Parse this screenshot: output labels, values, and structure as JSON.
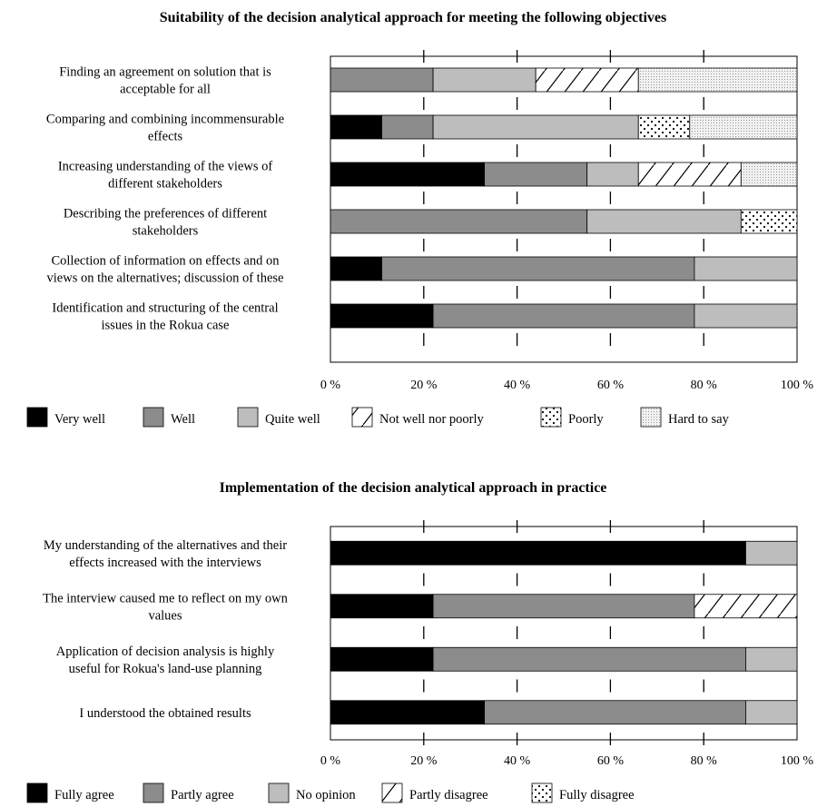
{
  "chart_data": [
    {
      "type": "bar",
      "orientation": "horizontal",
      "stacked": true,
      "title": "Suitability of the decision analytical approach for meeting the following objectives",
      "categories": [
        [
          "Finding an agreement on solution that is",
          "acceptable for all"
        ],
        [
          "Comparing and combining incommensurable",
          "effects"
        ],
        [
          "Increasing understanding of the views of",
          "different stakeholders"
        ],
        [
          "Describing the preferences of different",
          "stakeholders"
        ],
        [
          "Collection of information on effects and on",
          "views on the alternatives; discussion of these"
        ],
        [
          "Identification and structuring of the central",
          "issues in the Rokua case"
        ]
      ],
      "x_ticks": [
        "0 %",
        "20 %",
        "40 %",
        "60 %",
        "80 %",
        "100 %"
      ],
      "xlim": [
        0,
        100
      ],
      "legend_position": "bottom",
      "series": [
        {
          "name": "Very well",
          "pattern": "black",
          "values": [
            0,
            11,
            33,
            0,
            11,
            22
          ]
        },
        {
          "name": "Well",
          "pattern": "darkgray",
          "values": [
            22,
            11,
            22,
            55,
            67,
            56
          ]
        },
        {
          "name": "Quite well",
          "pattern": "lightgray",
          "values": [
            22,
            44,
            11,
            33,
            22,
            22
          ]
        },
        {
          "name": "Not well nor poorly",
          "pattern": "hatch",
          "values": [
            22,
            0,
            22,
            0,
            0,
            0
          ]
        },
        {
          "name": "Poorly",
          "pattern": "dots",
          "values": [
            0,
            11,
            0,
            12,
            0,
            0
          ]
        },
        {
          "name": "Hard to say",
          "pattern": "fine",
          "values": [
            34,
            23,
            12,
            0,
            0,
            0
          ]
        }
      ]
    },
    {
      "type": "bar",
      "orientation": "horizontal",
      "stacked": true,
      "title": "Implementation of the decision analytical approach in practice",
      "categories": [
        [
          "My understanding of the alternatives and their",
          "effects increased with the interviews"
        ],
        [
          "The interview caused me to reflect on my own",
          "values"
        ],
        [
          "Application of decision analysis is highly",
          "useful for Rokua's land-use planning"
        ],
        [
          "I understood the obtained results"
        ]
      ],
      "x_ticks": [
        "0 %",
        "20 %",
        "40 %",
        "60 %",
        "80 %",
        "100 %"
      ],
      "xlim": [
        0,
        100
      ],
      "legend_position": "bottom",
      "series": [
        {
          "name": "Fully agree",
          "pattern": "black",
          "values": [
            89,
            22,
            22,
            33
          ]
        },
        {
          "name": "Partly agree",
          "pattern": "darkgray",
          "values": [
            0,
            56,
            67,
            56
          ]
        },
        {
          "name": "No opinion",
          "pattern": "lightgray",
          "values": [
            11,
            0,
            11,
            11
          ]
        },
        {
          "name": "Partly disagree",
          "pattern": "hatch",
          "values": [
            0,
            22,
            0,
            0
          ]
        },
        {
          "name": "Fully disagree",
          "pattern": "dots",
          "values": [
            0,
            0,
            0,
            0
          ]
        }
      ]
    }
  ]
}
